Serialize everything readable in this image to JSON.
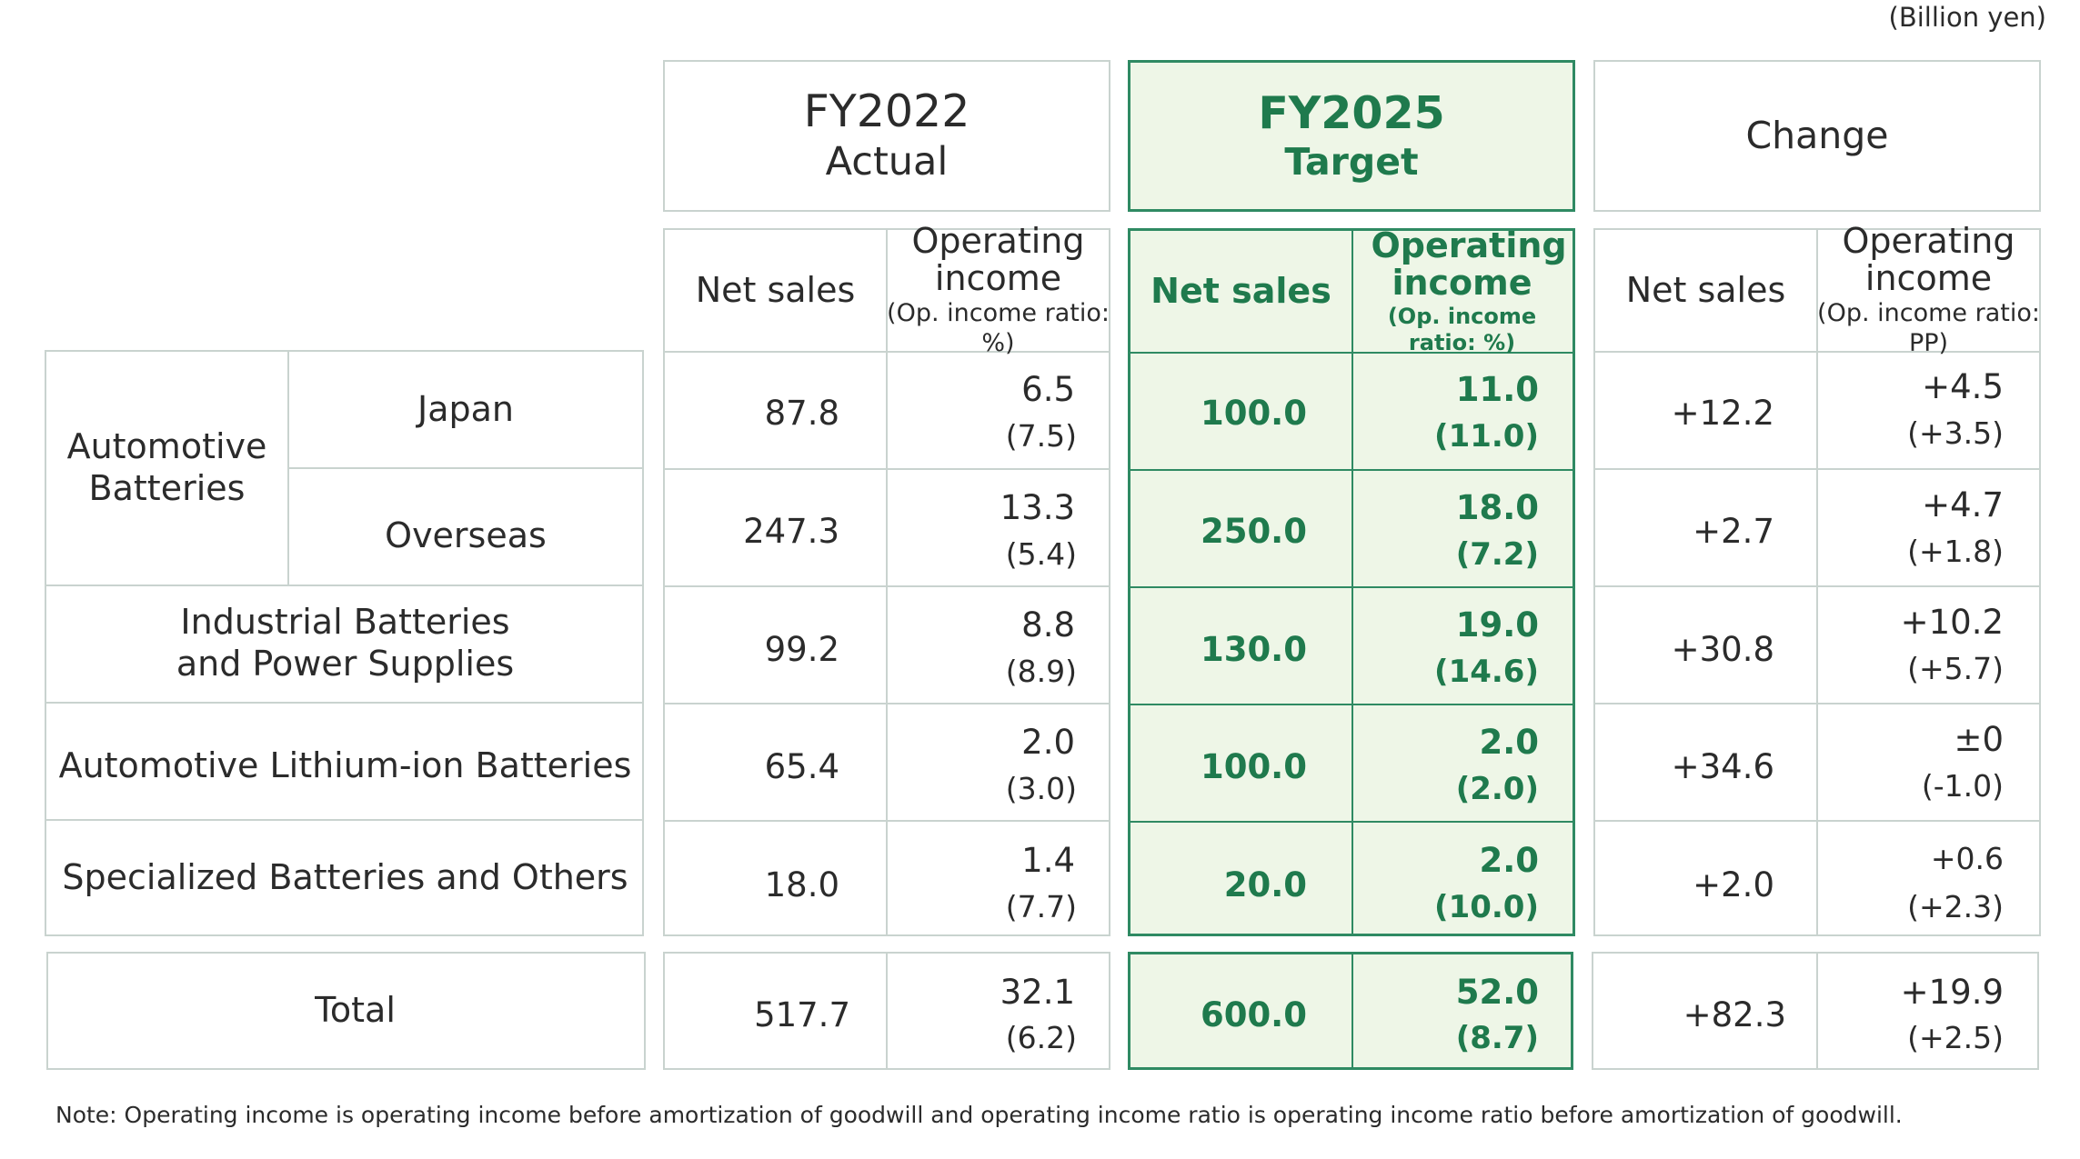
{
  "unit_label": "(Billion yen)",
  "headers": {
    "fy2022": {
      "year": "FY2022",
      "type": "Actual"
    },
    "fy2025": {
      "year": "FY2025",
      "type": "Target"
    },
    "change": "Change"
  },
  "subheaders": {
    "net_sales": "Net sales",
    "op_income": "Operating income",
    "ratio_pct": "(Op. income ratio: %)",
    "ratio_pp": "(Op. income ratio: PP)"
  },
  "segments": {
    "automotive_batteries": "Automotive Batteries",
    "japan": "Japan",
    "overseas": "Overseas",
    "industrial": "Industrial Batteries and Power Supplies",
    "lithium": "Automotive Lithium-ion Batteries",
    "specialized": "Specialized Batteries and Others",
    "total": "Total"
  },
  "rows": [
    {
      "fy22_sales": "87.8",
      "fy22_oi": "6.5",
      "fy22_ratio": "(7.5)",
      "fy25_sales": "100.0",
      "fy25_oi": "11.0",
      "fy25_ratio": "(11.0)",
      "chg_sales": "+12.2",
      "chg_oi": "+4.5",
      "chg_ratio": "(+3.5)"
    },
    {
      "fy22_sales": "247.3",
      "fy22_oi": "13.3",
      "fy22_ratio": "(5.4)",
      "fy25_sales": "250.0",
      "fy25_oi": "18.0",
      "fy25_ratio": "(7.2)",
      "chg_sales": "+2.7",
      "chg_oi": "+4.7",
      "chg_ratio": "(+1.8)"
    },
    {
      "fy22_sales": "99.2",
      "fy22_oi": "8.8",
      "fy22_ratio": "(8.9)",
      "fy25_sales": "130.0",
      "fy25_oi": "19.0",
      "fy25_ratio": "(14.6)",
      "chg_sales": "+30.8",
      "chg_oi": "+10.2",
      "chg_ratio": "(+5.7)"
    },
    {
      "fy22_sales": "65.4",
      "fy22_oi": "2.0",
      "fy22_ratio": "(3.0)",
      "fy25_sales": "100.0",
      "fy25_oi": "2.0",
      "fy25_ratio": "(2.0)",
      "chg_sales": "+34.6",
      "chg_oi": "±0",
      "chg_ratio": "(-1.0)"
    },
    {
      "fy22_sales": "18.0",
      "fy22_oi": "1.4",
      "fy22_ratio": "(7.7)",
      "fy25_sales": "20.0",
      "fy25_oi": "2.0",
      "fy25_ratio": "(10.0)",
      "chg_sales": "+2.0",
      "chg_oi": "+0.6",
      "chg_ratio": "(+2.3)"
    }
  ],
  "total": {
    "fy22_sales": "517.7",
    "fy22_oi": "32.1",
    "fy22_ratio": "(6.2)",
    "fy25_sales": "600.0",
    "fy25_oi": "52.0",
    "fy25_ratio": "(8.7)",
    "chg_sales": "+82.3",
    "chg_oi": "+19.9",
    "chg_ratio": "(+2.5)"
  },
  "note": "Note: Operating income is operating income before amortization of goodwill and operating income ratio is operating income ratio before amortization of goodwill.",
  "colors": {
    "accent_green": "#1f7a4d",
    "green_fill": "#eef6e7",
    "green_border": "#2f8a63",
    "grid": "#c9d3cf"
  }
}
